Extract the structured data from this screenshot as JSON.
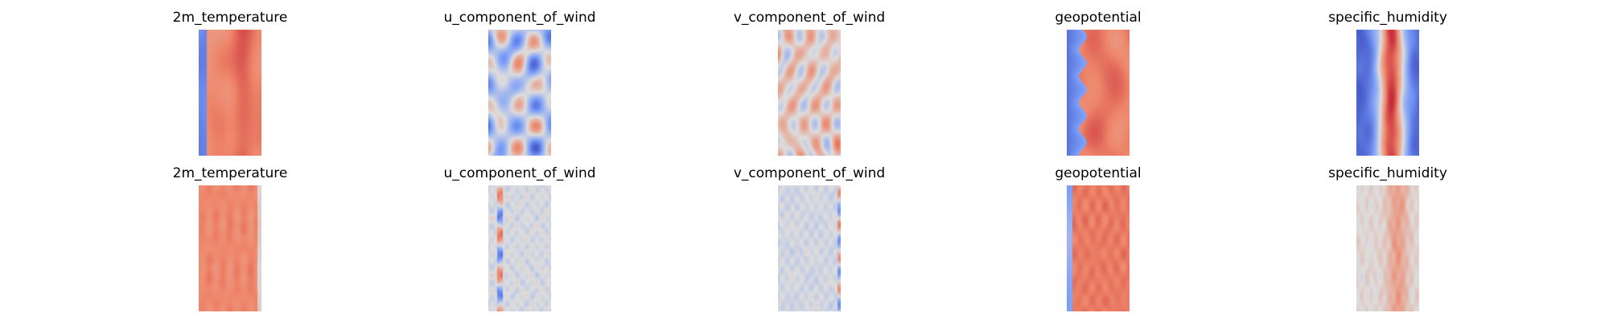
{
  "chart_data": [
    {
      "type": "heatmap",
      "title": "2m_temperature",
      "row": 1,
      "colormap": "coolwarm"
    },
    {
      "type": "heatmap",
      "title": "u_component_of_wind",
      "row": 1,
      "colormap": "coolwarm"
    },
    {
      "type": "heatmap",
      "title": "v_component_of_wind",
      "row": 1,
      "colormap": "coolwarm"
    },
    {
      "type": "heatmap",
      "title": "geopotential",
      "row": 1,
      "colormap": "coolwarm"
    },
    {
      "type": "heatmap",
      "title": "specific_humidity",
      "row": 1,
      "colormap": "coolwarm"
    },
    {
      "type": "heatmap",
      "title": "2m_temperature",
      "row": 2,
      "colormap": "coolwarm"
    },
    {
      "type": "heatmap",
      "title": "u_component_of_wind",
      "row": 2,
      "colormap": "coolwarm"
    },
    {
      "type": "heatmap",
      "title": "v_component_of_wind",
      "row": 2,
      "colormap": "coolwarm"
    },
    {
      "type": "heatmap",
      "title": "geopotential",
      "row": 2,
      "colormap": "coolwarm"
    },
    {
      "type": "heatmap",
      "title": "specific_humidity",
      "row": 2,
      "colormap": "coolwarm"
    }
  ]
}
